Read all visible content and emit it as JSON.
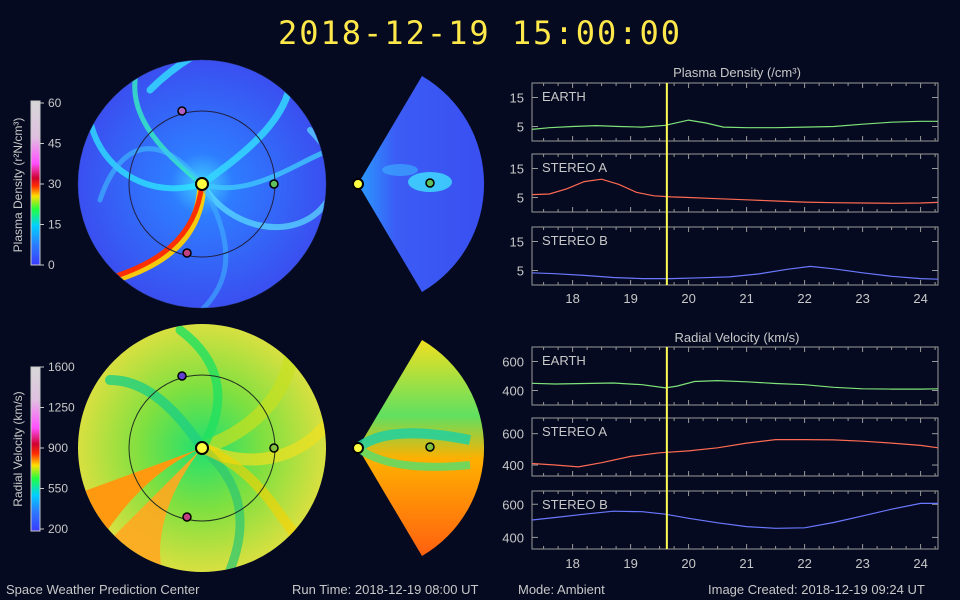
{
  "title": "2018-12-19 15:00:00",
  "footer": {
    "center": "Space Weather Prediction Center",
    "run_time": "Run Time: 2018-12-19 08:00 UT",
    "mode": "Mode: Ambient",
    "image_created": "Image Created: 2018-12-19 09:24 UT"
  },
  "colors": {
    "earth": "#7fe37a",
    "stereo_a": "#ff6a52",
    "stereo_b": "#6a78ff",
    "marker": "#ffff55",
    "title": "#ffe84a"
  },
  "colorbars": {
    "density": {
      "label": "Plasma Density (r²N/cm³)",
      "ticks": [
        "60",
        "45",
        "30",
        "15",
        "0"
      ]
    },
    "velocity": {
      "label": "Radial Velocity (km/s)",
      "ticks": [
        "1600",
        "1250",
        "900",
        "550",
        "200"
      ]
    }
  },
  "chart_data": [
    {
      "type": "line",
      "title": "Plasma Density (/cm³)",
      "x_ticks": [
        "18",
        "19",
        "20",
        "21",
        "22",
        "23",
        "24"
      ],
      "xlim": [
        17.3,
        24.3
      ],
      "current_time": 19.625,
      "panels": [
        {
          "name": "EARTH",
          "yticks": [
            "15",
            "5"
          ],
          "ylim": [
            0,
            20
          ],
          "color": "#7fe37a",
          "x": [
            17.3,
            17.6,
            18.0,
            18.4,
            18.8,
            19.2,
            19.6,
            20.0,
            20.3,
            20.6,
            21.0,
            21.5,
            22.0,
            22.5,
            23.0,
            23.5,
            24.0,
            24.3
          ],
          "y": [
            4.0,
            4.6,
            5.0,
            5.3,
            5.0,
            4.8,
            5.4,
            7.2,
            6.2,
            4.8,
            4.6,
            4.6,
            4.8,
            5.0,
            5.8,
            6.5,
            6.8,
            6.8
          ]
        },
        {
          "name": "STEREO A",
          "yticks": [
            "15",
            "5"
          ],
          "ylim": [
            0,
            20
          ],
          "color": "#ff6a52",
          "x": [
            17.3,
            17.6,
            17.9,
            18.2,
            18.5,
            18.8,
            19.1,
            19.4,
            19.7,
            20.0,
            20.5,
            21.0,
            21.5,
            22.0,
            22.5,
            23.0,
            23.5,
            24.0,
            24.3
          ],
          "y": [
            6.0,
            6.2,
            8.0,
            10.5,
            11.3,
            9.5,
            6.8,
            5.6,
            5.2,
            5.0,
            4.6,
            4.2,
            3.8,
            3.4,
            3.2,
            3.1,
            3.0,
            3.1,
            3.3
          ]
        },
        {
          "name": "STEREO B",
          "yticks": [
            "15",
            "5"
          ],
          "ylim": [
            0,
            20
          ],
          "color": "#6a78ff",
          "x": [
            17.3,
            17.7,
            18.2,
            18.7,
            19.2,
            19.7,
            20.2,
            20.7,
            21.2,
            21.7,
            22.1,
            22.5,
            23.0,
            23.5,
            24.0,
            24.3
          ],
          "y": [
            4.2,
            3.9,
            3.3,
            2.6,
            2.2,
            2.2,
            2.5,
            2.8,
            3.8,
            5.4,
            6.4,
            5.6,
            4.2,
            3.0,
            2.2,
            2.0
          ]
        }
      ]
    },
    {
      "type": "line",
      "title": "Radial Velocity (km/s)",
      "x_ticks": [
        "18",
        "19",
        "20",
        "21",
        "22",
        "23",
        "24"
      ],
      "xlim": [
        17.3,
        24.3
      ],
      "current_time": 19.625,
      "panels": [
        {
          "name": "EARTH",
          "yticks": [
            "600",
            "400"
          ],
          "ylim": [
            300,
            700
          ],
          "color": "#7fe37a",
          "x": [
            17.3,
            17.7,
            18.2,
            18.7,
            19.2,
            19.6,
            19.8,
            20.1,
            20.5,
            21.0,
            21.5,
            22.0,
            22.5,
            23.0,
            23.5,
            24.0,
            24.3
          ],
          "y": [
            450,
            445,
            448,
            452,
            440,
            418,
            430,
            462,
            468,
            460,
            448,
            440,
            422,
            412,
            410,
            410,
            412
          ]
        },
        {
          "name": "STEREO A",
          "yticks": [
            "600",
            "400"
          ],
          "ylim": [
            330,
            700
          ],
          "color": "#ff6a52",
          "x": [
            17.3,
            17.7,
            18.1,
            18.5,
            19.0,
            19.5,
            20.0,
            20.5,
            21.0,
            21.5,
            22.0,
            22.5,
            23.0,
            23.5,
            24.0,
            24.3
          ],
          "y": [
            410,
            400,
            388,
            415,
            455,
            478,
            490,
            510,
            540,
            562,
            562,
            560,
            552,
            540,
            525,
            510
          ]
        },
        {
          "name": "STEREO B",
          "yticks": [
            "600",
            "400"
          ],
          "ylim": [
            330,
            680
          ],
          "color": "#6a78ff",
          "x": [
            17.3,
            17.7,
            18.2,
            18.7,
            19.2,
            19.6,
            20.0,
            20.5,
            21.0,
            21.5,
            22.0,
            22.5,
            23.0,
            23.5,
            24.0,
            24.3
          ],
          "y": [
            505,
            520,
            540,
            558,
            555,
            540,
            515,
            488,
            465,
            455,
            458,
            490,
            530,
            570,
            605,
            605
          ]
        }
      ]
    }
  ]
}
